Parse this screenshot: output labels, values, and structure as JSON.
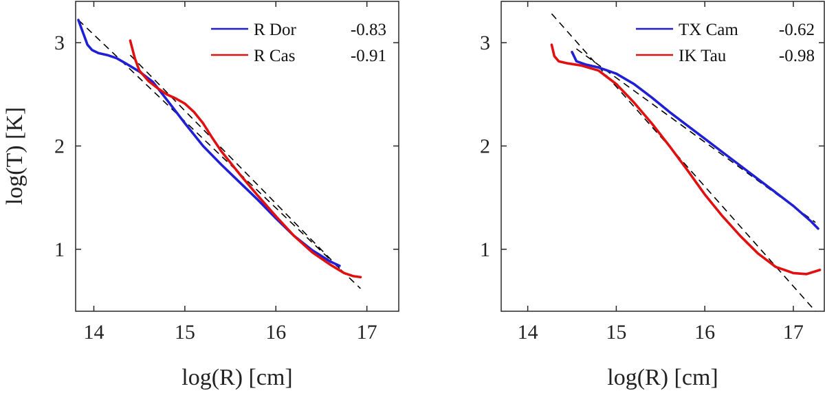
{
  "chart_data": [
    {
      "type": "line",
      "xlabel": "log(R) [cm]",
      "ylabel": "log(T) [K]",
      "xlim": [
        13.8,
        17.35
      ],
      "ylim": [
        0.4,
        3.4
      ],
      "xticks": [
        14,
        15,
        16,
        17
      ],
      "yticks": [
        1,
        2,
        3
      ],
      "legend_position": "top-right",
      "series": [
        {
          "name": "R Dor",
          "slope_label": "-0.83",
          "color": "#1f1fd6",
          "x": [
            13.83,
            13.88,
            13.93,
            13.98,
            14.05,
            14.15,
            14.25,
            14.35,
            14.5,
            14.65,
            14.8,
            15.0,
            15.2,
            15.4,
            15.6,
            15.8,
            16.0,
            16.2,
            16.4,
            16.6,
            16.7
          ],
          "y": [
            3.22,
            3.1,
            2.98,
            2.93,
            2.9,
            2.88,
            2.85,
            2.8,
            2.72,
            2.62,
            2.45,
            2.22,
            2.0,
            1.82,
            1.65,
            1.48,
            1.3,
            1.13,
            0.99,
            0.88,
            0.84
          ]
        },
        {
          "name": "R Cas",
          "slope_label": "-0.91",
          "color": "#e01010",
          "x": [
            14.4,
            14.45,
            14.5,
            14.6,
            14.7,
            14.8,
            14.9,
            15.0,
            15.1,
            15.2,
            15.3,
            15.4,
            15.6,
            15.8,
            16.0,
            16.2,
            16.4,
            16.6,
            16.75,
            16.85,
            16.93
          ],
          "y": [
            3.02,
            2.85,
            2.73,
            2.63,
            2.56,
            2.5,
            2.46,
            2.41,
            2.33,
            2.22,
            2.08,
            1.95,
            1.73,
            1.52,
            1.32,
            1.13,
            0.97,
            0.85,
            0.77,
            0.74,
            0.73
          ]
        }
      ],
      "fit_lines": [
        {
          "x": [
            13.83,
            16.93
          ],
          "y": [
            3.22,
            0.62
          ]
        },
        {
          "x": [
            14.4,
            16.75
          ],
          "y": [
            2.88,
            0.77
          ]
        }
      ]
    },
    {
      "type": "line",
      "xlabel": "log(R) [cm]",
      "ylabel": "",
      "xlim": [
        13.7,
        17.35
      ],
      "ylim": [
        0.4,
        3.4
      ],
      "xticks": [
        14,
        15,
        16,
        17
      ],
      "yticks": [
        1,
        2,
        3
      ],
      "legend_position": "top-right",
      "series": [
        {
          "name": "TX Cam",
          "slope_label": "-0.62",
          "color": "#1f1fd6",
          "x": [
            14.5,
            14.55,
            14.65,
            14.8,
            15.0,
            15.2,
            15.4,
            15.6,
            15.8,
            16.0,
            16.2,
            16.4,
            16.6,
            16.8,
            17.0,
            17.2,
            17.28
          ],
          "y": [
            2.91,
            2.82,
            2.79,
            2.76,
            2.7,
            2.6,
            2.47,
            2.33,
            2.2,
            2.07,
            1.94,
            1.81,
            1.68,
            1.55,
            1.42,
            1.27,
            1.2
          ]
        },
        {
          "name": "IK Tau",
          "slope_label": "-0.98",
          "color": "#e01010",
          "x": [
            14.27,
            14.3,
            14.35,
            14.45,
            14.6,
            14.8,
            15.0,
            15.2,
            15.4,
            15.6,
            15.8,
            16.0,
            16.2,
            16.4,
            16.6,
            16.8,
            17.0,
            17.15,
            17.3
          ],
          "y": [
            2.98,
            2.87,
            2.82,
            2.8,
            2.78,
            2.73,
            2.6,
            2.42,
            2.22,
            2.0,
            1.77,
            1.53,
            1.32,
            1.13,
            0.96,
            0.83,
            0.77,
            0.76,
            0.8
          ]
        }
      ],
      "fit_lines": [
        {
          "x": [
            14.27,
            17.25
          ],
          "y": [
            3.28,
            0.4
          ]
        },
        {
          "x": [
            14.55,
            17.25
          ],
          "y": [
            2.94,
            1.26
          ]
        }
      ]
    }
  ]
}
